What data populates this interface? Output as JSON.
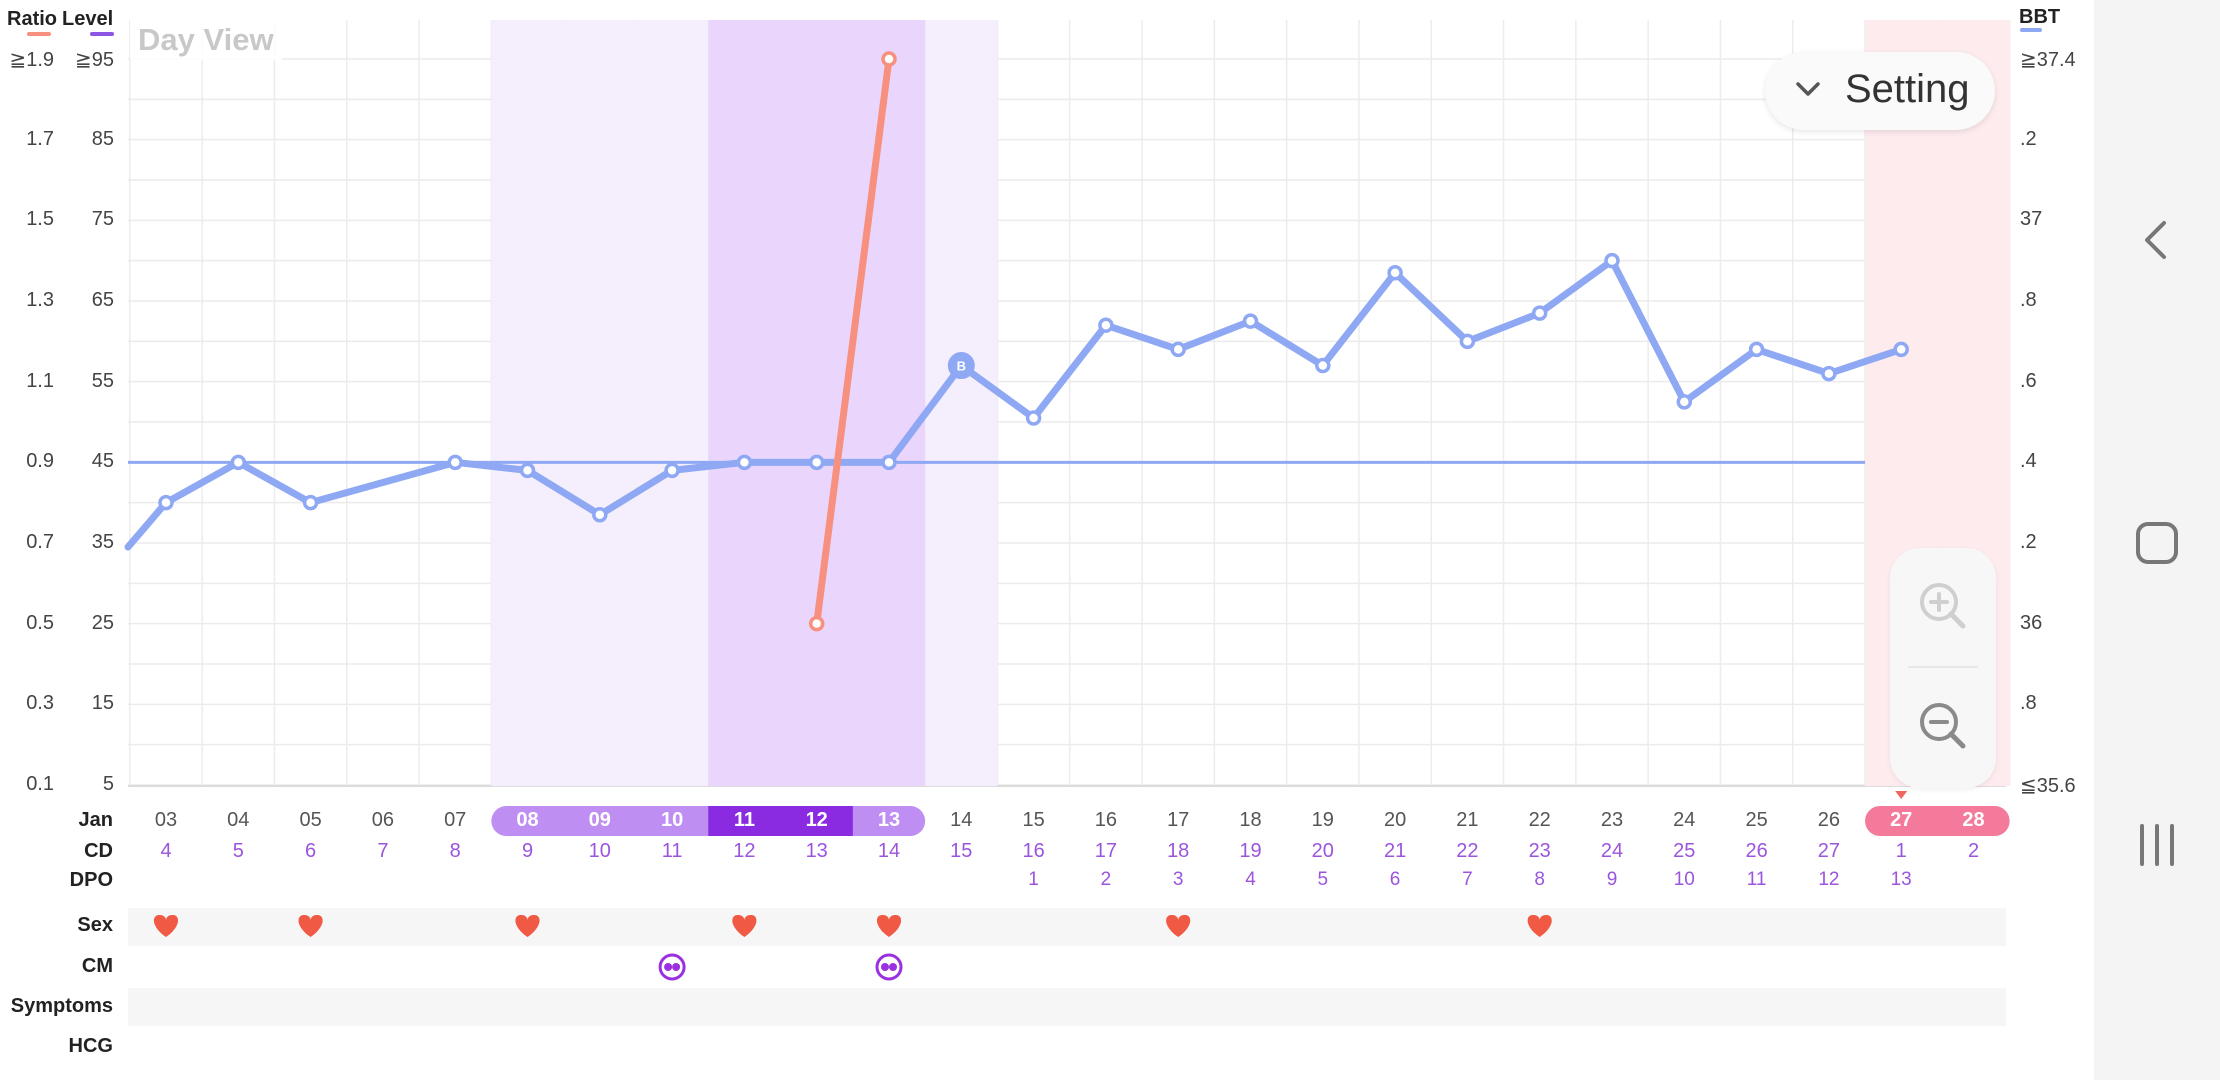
{
  "title": "Day View",
  "legend": {
    "ratio": "Ratio",
    "level": "Level",
    "bbt": "BBT",
    "ratio_color": "#f7907e",
    "level_color": "#8c55e6",
    "bbt_color": "#8fa8f3"
  },
  "setting": {
    "label": "Setting",
    "icon": "chevron-down-icon"
  },
  "zoom": {
    "in_icon": "zoom-in-icon",
    "out_icon": "zoom-out-icon"
  },
  "nav": {
    "back_icon": "back-icon",
    "home_icon": "home-icon",
    "recents_icon": "recents-icon"
  },
  "row_labels": {
    "month": "Jan",
    "cd": "CD",
    "dpo": "DPO",
    "sex": "Sex",
    "cm": "CM",
    "symptoms": "Symptoms",
    "hcg": "HCG"
  },
  "chart_data": {
    "type": "line",
    "title": "Day View",
    "x": [
      "03",
      "04",
      "05",
      "06",
      "07",
      "08",
      "09",
      "10",
      "11",
      "12",
      "13",
      "14",
      "15",
      "16",
      "17",
      "18",
      "19",
      "20",
      "21",
      "22",
      "23",
      "24",
      "25",
      "26",
      "27",
      "28"
    ],
    "cd": [
      "4",
      "5",
      "6",
      "7",
      "8",
      "9",
      "10",
      "11",
      "12",
      "13",
      "14",
      "15",
      "16",
      "17",
      "18",
      "19",
      "20",
      "21",
      "22",
      "23",
      "24",
      "25",
      "26",
      "27",
      "1",
      "2"
    ],
    "dpo": [
      "",
      "",
      "",
      "",
      "",
      "",
      "",
      "",
      "",
      "",
      "",
      "",
      "1",
      "2",
      "3",
      "4",
      "5",
      "6",
      "7",
      "8",
      "9",
      "10",
      "11",
      "12",
      "13",
      "",
      ""
    ],
    "left_axis_ratio": {
      "ticks": [
        "≧1.9",
        "1.7",
        "1.5",
        "1.3",
        "1.1",
        "0.9",
        "0.7",
        "0.5",
        "0.3",
        "0.1"
      ],
      "ylim": [
        0.1,
        1.9
      ]
    },
    "left_axis_level": {
      "ticks": [
        "≧95",
        "85",
        "75",
        "65",
        "55",
        "45",
        "35",
        "25",
        "15",
        "5"
      ],
      "ylim": [
        5,
        95
      ]
    },
    "right_axis_bbt": {
      "ticks": [
        "≧37.4",
        ".2",
        "37",
        ".8",
        ".6",
        ".4",
        ".2",
        "36",
        ".8",
        "≦35.6"
      ],
      "ylim": [
        35.6,
        37.4
      ]
    },
    "series": [
      {
        "name": "BBT",
        "color": "#8fa8f3",
        "values": [
          36.3,
          36.4,
          36.3,
          null,
          36.4,
          36.38,
          36.27,
          36.38,
          36.4,
          36.4,
          36.4,
          36.64,
          36.51,
          36.74,
          36.68,
          36.75,
          36.64,
          36.87,
          36.7,
          36.77,
          36.9,
          36.55,
          36.68,
          36.62,
          36.68,
          null
        ],
        "start_value": 36.19,
        "marker_label": {
          "day": "14",
          "text": "B"
        }
      },
      {
        "name": "Ratio",
        "color": "#f7907e",
        "values": [
          null,
          null,
          null,
          null,
          null,
          null,
          null,
          null,
          null,
          0.5,
          1.9,
          null,
          null,
          null,
          null,
          null,
          null,
          null,
          null,
          null,
          null,
          null,
          null,
          null,
          null,
          null
        ]
      }
    ],
    "coverline": {
      "value": 36.4,
      "from": "03",
      "to": "26",
      "color": "#8fa8f3"
    },
    "fertile_light_days": [
      "08",
      "09",
      "10",
      "14"
    ],
    "fertile_dark_days": [
      "11",
      "12",
      "13"
    ],
    "period_days": [
      "27",
      "28"
    ],
    "today": "27",
    "sex_days": [
      "03",
      "05",
      "08",
      "11",
      "13",
      "17",
      "22"
    ],
    "cm_days": [
      "10",
      "13"
    ],
    "grid": true
  }
}
